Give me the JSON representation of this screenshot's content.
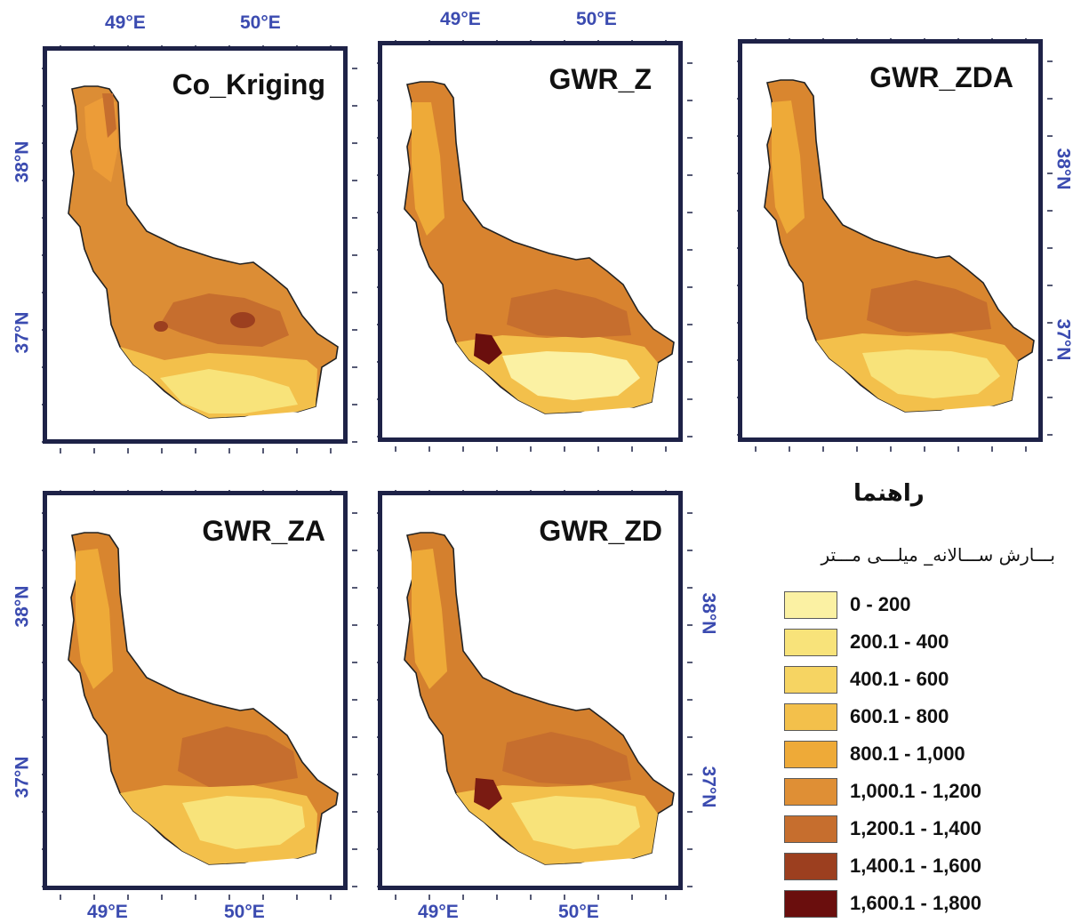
{
  "panels": [
    {
      "title": "Co_Kriging",
      "palette": "kriging"
    },
    {
      "title": "GWR_Z",
      "palette": "gwr_z"
    },
    {
      "title": "GWR_ZDA",
      "palette": "gwr_zda"
    },
    {
      "title": "GWR_ZA",
      "palette": "gwr_za"
    },
    {
      "title": "GWR_ZD",
      "palette": "gwr_zd"
    }
  ],
  "coords": {
    "lon_49": "49°E",
    "lon_50": "50°E",
    "lat_38": "38°N",
    "lat_37": "37°N"
  },
  "legend": {
    "title": "راهنما",
    "subtitle": "بـــارش ســـالانه_ میلـــی مـــتر",
    "items": [
      {
        "label": "0 - 200",
        "color": "#fbf1a3"
      },
      {
        "label": "200.1 - 400",
        "color": "#f8e37a"
      },
      {
        "label": "400.1 - 600",
        "color": "#f6d462"
      },
      {
        "label": "600.1 - 800",
        "color": "#f3c04b"
      },
      {
        "label": "800.1 - 1,000",
        "color": "#eeaa38"
      },
      {
        "label": "1,000.1 - 1,200",
        "color": "#df8f35"
      },
      {
        "label": "1,200.1 - 1,400",
        "color": "#c66e2e"
      },
      {
        "label": "1,400.1 - 1,600",
        "color": "#9c3f1f"
      },
      {
        "label": "1,600.1 - 1,800",
        "color": "#6a0e0d"
      }
    ]
  }
}
